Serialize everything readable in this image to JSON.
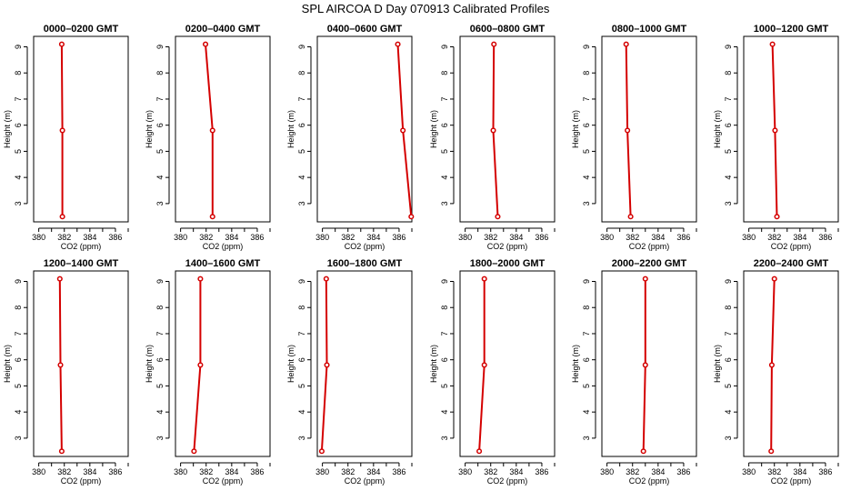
{
  "title": "SPL AIRCOA D  Day 070913  Calibrated Profiles",
  "colors": {
    "series": "#d40000",
    "axes": "#000000",
    "background": "#ffffff"
  },
  "chart_data": [
    {
      "type": "line",
      "title": "0000–0200 GMT",
      "xlabel": "CO2 (ppm)",
      "ylabel": "Height (m)",
      "xlim": [
        379.6,
        387.0
      ],
      "ylim": [
        2.3,
        9.4
      ],
      "xticks": [
        380,
        382,
        384,
        386
      ],
      "yticks": [
        3,
        4,
        5,
        6,
        7,
        8,
        9
      ],
      "x": [
        381.85,
        381.85,
        381.8
      ],
      "y": [
        2.5,
        5.8,
        9.1
      ]
    },
    {
      "type": "line",
      "title": "0200–0400 GMT",
      "xlabel": "CO2 (ppm)",
      "ylabel": "Height (m)",
      "xlim": [
        379.6,
        387.0
      ],
      "ylim": [
        2.3,
        9.4
      ],
      "xticks": [
        380,
        382,
        384,
        386
      ],
      "yticks": [
        3,
        4,
        5,
        6,
        7,
        8,
        9
      ],
      "x": [
        382.5,
        382.5,
        381.95
      ],
      "y": [
        2.5,
        5.8,
        9.1
      ]
    },
    {
      "type": "line",
      "title": "0400–0600 GMT",
      "xlabel": "CO2 (ppm)",
      "ylabel": "Height (m)",
      "xlim": [
        379.6,
        387.0
      ],
      "ylim": [
        2.3,
        9.4
      ],
      "xticks": [
        380,
        382,
        384,
        386
      ],
      "yticks": [
        3,
        4,
        5,
        6,
        7,
        8,
        9
      ],
      "x": [
        386.95,
        386.3,
        385.9
      ],
      "y": [
        2.5,
        5.8,
        9.1
      ]
    },
    {
      "type": "line",
      "title": "0600–0800 GMT",
      "xlabel": "CO2 (ppm)",
      "ylabel": "Height (m)",
      "xlim": [
        379.6,
        387.0
      ],
      "ylim": [
        2.3,
        9.4
      ],
      "xticks": [
        380,
        382,
        384,
        386
      ],
      "yticks": [
        3,
        4,
        5,
        6,
        7,
        8,
        9
      ],
      "x": [
        382.55,
        382.2,
        382.25
      ],
      "y": [
        2.5,
        5.8,
        9.1
      ]
    },
    {
      "type": "line",
      "title": "0800–1000 GMT",
      "xlabel": "CO2 (ppm)",
      "ylabel": "Height (m)",
      "xlim": [
        379.6,
        387.0
      ],
      "ylim": [
        2.3,
        9.4
      ],
      "xticks": [
        380,
        382,
        384,
        386
      ],
      "yticks": [
        3,
        4,
        5,
        6,
        7,
        8,
        9
      ],
      "x": [
        381.85,
        381.6,
        381.5
      ],
      "y": [
        2.5,
        5.8,
        9.1
      ]
    },
    {
      "type": "line",
      "title": "1000–1200 GMT",
      "xlabel": "CO2 (ppm)",
      "ylabel": "Height (m)",
      "xlim": [
        379.6,
        387.0
      ],
      "ylim": [
        2.3,
        9.4
      ],
      "xticks": [
        380,
        382,
        384,
        386
      ],
      "yticks": [
        3,
        4,
        5,
        6,
        7,
        8,
        9
      ],
      "x": [
        382.2,
        382.05,
        381.85
      ],
      "y": [
        2.5,
        5.8,
        9.1
      ]
    },
    {
      "type": "line",
      "title": "1200–1400 GMT",
      "xlabel": "CO2 (ppm)",
      "ylabel": "Height (m)",
      "xlim": [
        379.6,
        387.0
      ],
      "ylim": [
        2.3,
        9.4
      ],
      "xticks": [
        380,
        382,
        384,
        386
      ],
      "yticks": [
        3,
        4,
        5,
        6,
        7,
        8,
        9
      ],
      "x": [
        381.8,
        381.7,
        381.65
      ],
      "y": [
        2.5,
        5.8,
        9.1
      ]
    },
    {
      "type": "line",
      "title": "1400–1600 GMT",
      "xlabel": "CO2 (ppm)",
      "ylabel": "Height (m)",
      "xlim": [
        379.6,
        387.0
      ],
      "ylim": [
        2.3,
        9.4
      ],
      "xticks": [
        380,
        382,
        384,
        386
      ],
      "yticks": [
        3,
        4,
        5,
        6,
        7,
        8,
        9
      ],
      "x": [
        381.05,
        381.55,
        381.55
      ],
      "y": [
        2.5,
        5.8,
        9.1
      ]
    },
    {
      "type": "line",
      "title": "1600–1800 GMT",
      "xlabel": "CO2 (ppm)",
      "ylabel": "Height (m)",
      "xlim": [
        379.6,
        387.0
      ],
      "ylim": [
        2.3,
        9.4
      ],
      "xticks": [
        380,
        382,
        384,
        386
      ],
      "yticks": [
        3,
        4,
        5,
        6,
        7,
        8,
        9
      ],
      "x": [
        379.95,
        380.35,
        380.3
      ],
      "y": [
        2.5,
        5.8,
        9.1
      ]
    },
    {
      "type": "line",
      "title": "1800–2000 GMT",
      "xlabel": "CO2 (ppm)",
      "ylabel": "Height (m)",
      "xlim": [
        379.6,
        387.0
      ],
      "ylim": [
        2.3,
        9.4
      ],
      "xticks": [
        380,
        382,
        384,
        386
      ],
      "yticks": [
        3,
        4,
        5,
        6,
        7,
        8,
        9
      ],
      "x": [
        381.1,
        381.5,
        381.5
      ],
      "y": [
        2.5,
        5.8,
        9.1
      ]
    },
    {
      "type": "line",
      "title": "2000–2200 GMT",
      "xlabel": "CO2 (ppm)",
      "ylabel": "Height (m)",
      "xlim": [
        379.6,
        387.0
      ],
      "ylim": [
        2.3,
        9.4
      ],
      "xticks": [
        380,
        382,
        384,
        386
      ],
      "yticks": [
        3,
        4,
        5,
        6,
        7,
        8,
        9
      ],
      "x": [
        382.85,
        383.0,
        383.0
      ],
      "y": [
        2.5,
        5.8,
        9.1
      ]
    },
    {
      "type": "line",
      "title": "2200–2400 GMT",
      "xlabel": "CO2 (ppm)",
      "ylabel": "Height (m)",
      "xlim": [
        379.6,
        387.0
      ],
      "ylim": [
        2.3,
        9.4
      ],
      "xticks": [
        380,
        382,
        384,
        386
      ],
      "yticks": [
        3,
        4,
        5,
        6,
        7,
        8,
        9
      ],
      "x": [
        381.75,
        381.8,
        382.0
      ],
      "y": [
        2.5,
        5.8,
        9.1
      ]
    }
  ]
}
